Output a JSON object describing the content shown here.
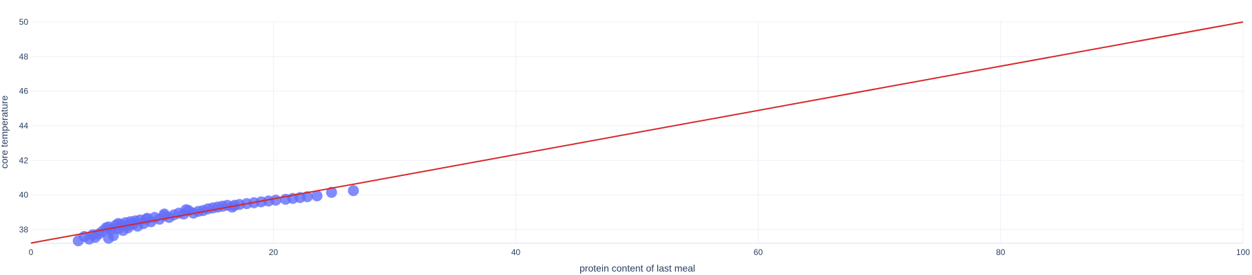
{
  "chart_data": {
    "type": "scatter",
    "xlabel": "protein content of last meal",
    "ylabel": "core temperature",
    "xlim": [
      0,
      100
    ],
    "ylim": [
      37.2,
      50.0
    ],
    "xticks": [
      "0",
      "20",
      "40",
      "60",
      "80",
      "100"
    ],
    "yticks": [
      "38",
      "40",
      "42",
      "44",
      "46",
      "48",
      "50"
    ],
    "grid": true,
    "legend": "none",
    "series": [
      {
        "type": "scatter",
        "color": "#636efa",
        "x": [
          3.9,
          4.4,
          4.8,
          5.1,
          5.3,
          5.6,
          5.9,
          6.2,
          6.4,
          6.6,
          6.8,
          7.0,
          7.2,
          7.4,
          7.6,
          7.8,
          8.0,
          8.2,
          8.4,
          8.6,
          8.8,
          9.0,
          9.3,
          9.6,
          9.9,
          10.2,
          10.6,
          11.0,
          11.4,
          11.8,
          12.2,
          12.6,
          13.0,
          13.4,
          13.8,
          14.2,
          14.6,
          15.0,
          15.4,
          15.8,
          16.2,
          16.6,
          17.2,
          17.8,
          18.4,
          19.0,
          19.6,
          20.2,
          21.0,
          21.6,
          22.2,
          22.8,
          23.6,
          24.8,
          26.6,
          6.4,
          7.2,
          8.0,
          9.5,
          11.0,
          12.8,
          16.8
        ],
        "y": [
          37.35,
          37.6,
          37.45,
          37.7,
          37.55,
          37.75,
          37.9,
          38.1,
          37.5,
          38.0,
          37.65,
          38.25,
          38.05,
          38.3,
          37.95,
          38.4,
          38.1,
          38.45,
          38.3,
          38.5,
          38.2,
          38.55,
          38.35,
          38.65,
          38.45,
          38.7,
          38.6,
          38.8,
          38.7,
          38.85,
          38.95,
          38.9,
          39.1,
          38.95,
          39.05,
          39.1,
          39.2,
          39.25,
          39.3,
          39.35,
          39.4,
          39.3,
          39.45,
          39.5,
          39.55,
          39.6,
          39.65,
          39.7,
          39.75,
          39.8,
          39.85,
          39.9,
          39.95,
          40.15,
          40.25,
          38.15,
          38.35,
          38.25,
          38.6,
          38.9,
          39.15,
          39.4
        ]
      },
      {
        "type": "line",
        "color": "#d62728",
        "x": [
          0,
          100
        ],
        "y": [
          37.22,
          50.0
        ]
      }
    ]
  }
}
